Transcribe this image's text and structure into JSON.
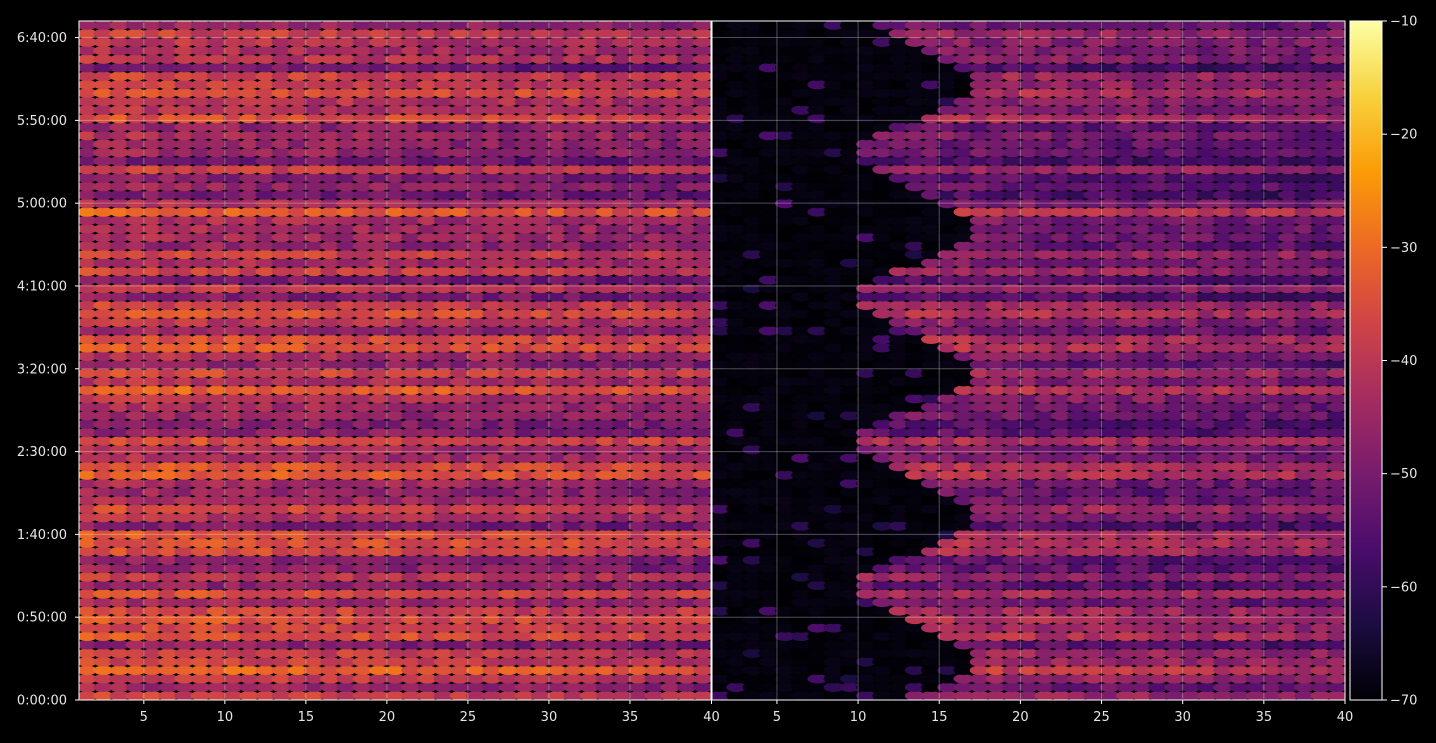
{
  "chart_data": {
    "type": "heatmap",
    "title": "",
    "xlabel": "",
    "ylabel": "",
    "colormap": "inferno",
    "colormap_stops": [
      "#000004",
      "#1b0c41",
      "#4a0c6b",
      "#781c6d",
      "#a52c60",
      "#cf4446",
      "#ed6925",
      "#fb9b06",
      "#f7d13d",
      "#fcffa4"
    ],
    "background_color": "#000000",
    "grid": true,
    "y_axis": {
      "range_seconds": [
        0,
        24600
      ],
      "ticks": [
        0,
        3000,
        6000,
        9000,
        12000,
        15000,
        18000,
        21000,
        24000
      ],
      "tick_labels": [
        "0:00:00",
        "0:50:00",
        "1:40:00",
        "2:30:00",
        "3:20:00",
        "4:10:00",
        "5:00:00",
        "5:50:00",
        "6:40:00"
      ]
    },
    "panels": [
      {
        "name": "left",
        "x_range": [
          1,
          40
        ],
        "ticks": [
          5,
          10,
          15,
          20,
          25,
          30,
          35
        ],
        "tick_labels": [
          "5",
          "10",
          "15",
          "20",
          "25",
          "30",
          "35"
        ],
        "value_base": -40,
        "value_variation": 10,
        "onset_start": 0,
        "onset_end": 0
      },
      {
        "name": "right",
        "x_range": [
          1,
          40
        ],
        "ticks": [
          5,
          10,
          15,
          20,
          25,
          30,
          35,
          40
        ],
        "tick_labels": [
          "5",
          "10",
          "15",
          "20",
          "25",
          "30",
          "35",
          "40"
        ],
        "value_base": -46,
        "value_variation": 9,
        "onset_start": 10,
        "onset_end": 17
      }
    ],
    "shared_x_label": "40",
    "colorbar": {
      "range": [
        -70,
        -10
      ],
      "ticks": [
        -70,
        -60,
        -50,
        -40,
        -30,
        -20,
        -10
      ],
      "tick_labels": [
        "−70",
        "−60",
        "−50",
        "−40",
        "−30",
        "−20",
        "−10"
      ]
    },
    "cells": {
      "rows": 80,
      "cols_per_panel": 39
    }
  }
}
